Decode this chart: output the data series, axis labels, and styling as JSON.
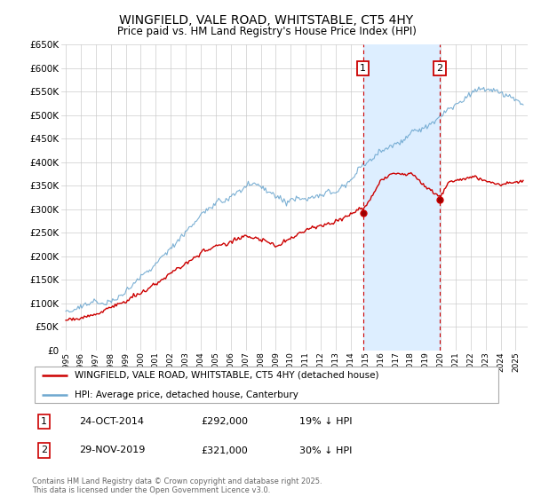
{
  "title": "WINGFIELD, VALE ROAD, WHITSTABLE, CT5 4HY",
  "subtitle": "Price paid vs. HM Land Registry's House Price Index (HPI)",
  "ylim": [
    0,
    650000
  ],
  "xlim_start": 1994.7,
  "xlim_end": 2025.8,
  "event1_x": 2014.82,
  "event1_y": 292000,
  "event1_label": "1",
  "event1_date": "24-OCT-2014",
  "event1_price": "£292,000",
  "event1_hpi": "19% ↓ HPI",
  "event2_x": 2019.92,
  "event2_y": 321000,
  "event2_label": "2",
  "event2_date": "29-NOV-2019",
  "event2_price": "£321,000",
  "event2_hpi": "30% ↓ HPI",
  "legend_line1": "WINGFIELD, VALE ROAD, WHITSTABLE, CT5 4HY (detached house)",
  "legend_line2": "HPI: Average price, detached house, Canterbury",
  "footnote": "Contains HM Land Registry data © Crown copyright and database right 2025.\nThis data is licensed under the Open Government Licence v3.0.",
  "red_color": "#cc0000",
  "blue_color": "#6ea8d0",
  "shade_color": "#ddeeff",
  "grid_color": "#cccccc",
  "bg_color": "#ffffff",
  "event_box_color": "#cc0000"
}
